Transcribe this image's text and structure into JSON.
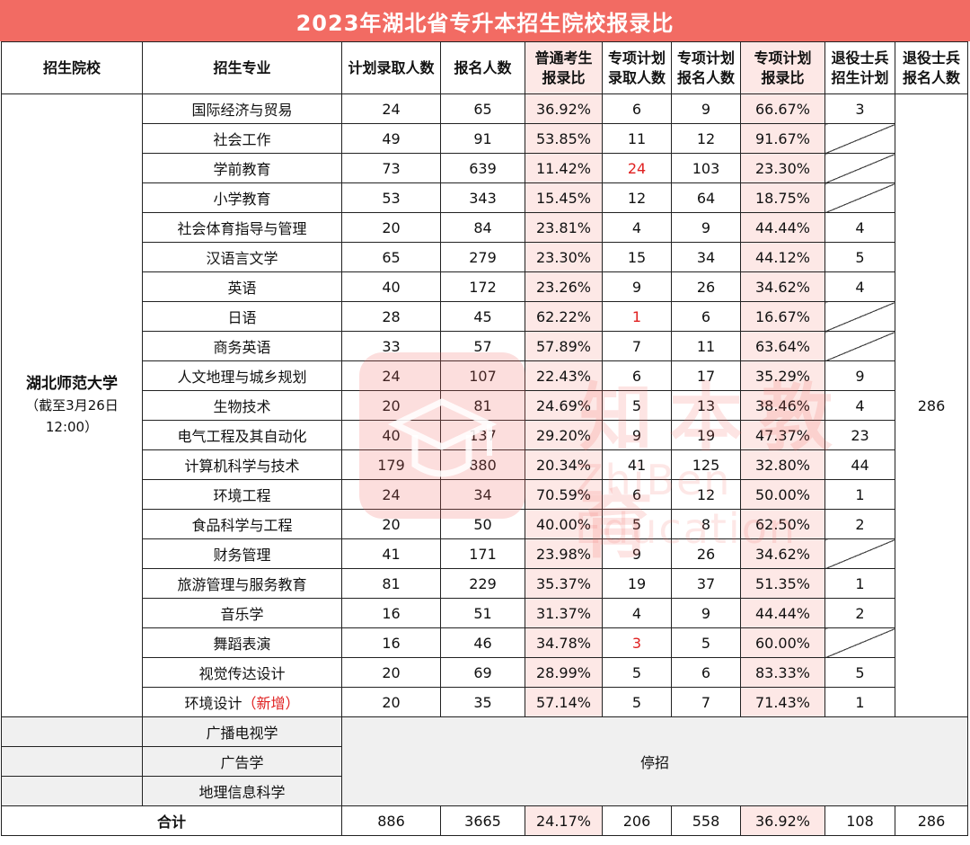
{
  "title": "2023年湖北省专升本招生院校报录比",
  "headers": {
    "school": "招生院校",
    "major": "招生专业",
    "plan": "计划录取人数",
    "applicants": "报名人数",
    "ratio_line1": "普通考生",
    "ratio_line2": "报录比",
    "special_admit_line1": "专项计划",
    "special_admit_line2": "录取人数",
    "special_apply_line1": "专项计划",
    "special_apply_line2": "报名人数",
    "special_ratio_line1": "专项计划",
    "special_ratio_line2": "报录比",
    "veteran_plan_line1": "退役士兵",
    "veteran_plan_line2": "招生计划",
    "veteran_apply_line1": "退役士兵",
    "veteran_apply_line2": "报名人数"
  },
  "school": {
    "name": "湖北师范大学",
    "note_line1": "（截至3月26日",
    "note_line2": "12:00）"
  },
  "veteran_applicants_total": "286",
  "rows": [
    {
      "major": "国际经济与贸易",
      "plan": "24",
      "applicants": "65",
      "ratio": "36.92%",
      "special_admit": "6",
      "special_apply": "9",
      "special_ratio": "66.67%",
      "veteran_plan": "3"
    },
    {
      "major": "社会工作",
      "plan": "49",
      "applicants": "91",
      "ratio": "53.85%",
      "special_admit": "11",
      "special_apply": "12",
      "special_ratio": "91.67%",
      "veteran_plan": ""
    },
    {
      "major": "学前教育",
      "plan": "73",
      "applicants": "639",
      "ratio": "11.42%",
      "special_admit": "24",
      "special_apply": "103",
      "special_ratio": "23.30%",
      "veteran_plan": ""
    },
    {
      "major": "小学教育",
      "plan": "53",
      "applicants": "343",
      "ratio": "15.45%",
      "special_admit": "12",
      "special_apply": "64",
      "special_ratio": "18.75%",
      "veteran_plan": ""
    },
    {
      "major": "社会体育指导与管理",
      "plan": "20",
      "applicants": "84",
      "ratio": "23.81%",
      "special_admit": "4",
      "special_apply": "9",
      "special_ratio": "44.44%",
      "veteran_plan": "4"
    },
    {
      "major": "汉语言文学",
      "plan": "65",
      "applicants": "279",
      "ratio": "23.30%",
      "special_admit": "15",
      "special_apply": "34",
      "special_ratio": "44.12%",
      "veteran_plan": "5"
    },
    {
      "major": "英语",
      "plan": "40",
      "applicants": "172",
      "ratio": "23.26%",
      "special_admit": "9",
      "special_apply": "26",
      "special_ratio": "34.62%",
      "veteran_plan": "4"
    },
    {
      "major": "日语",
      "plan": "28",
      "applicants": "45",
      "ratio": "62.22%",
      "special_admit": "1",
      "special_apply": "6",
      "special_ratio": "16.67%",
      "veteran_plan": ""
    },
    {
      "major": "商务英语",
      "plan": "33",
      "applicants": "57",
      "ratio": "57.89%",
      "special_admit": "7",
      "special_apply": "11",
      "special_ratio": "63.64%",
      "veteran_plan": ""
    },
    {
      "major": "人文地理与城乡规划",
      "plan": "24",
      "applicants": "107",
      "ratio": "22.43%",
      "special_admit": "6",
      "special_apply": "17",
      "special_ratio": "35.29%",
      "veteran_plan": "9"
    },
    {
      "major": "生物技术",
      "plan": "20",
      "applicants": "81",
      "ratio": "24.69%",
      "special_admit": "5",
      "special_apply": "13",
      "special_ratio": "38.46%",
      "veteran_plan": "4"
    },
    {
      "major": "电气工程及其自动化",
      "plan": "40",
      "applicants": "137",
      "ratio": "29.20%",
      "special_admit": "9",
      "special_apply": "19",
      "special_ratio": "47.37%",
      "veteran_plan": "23"
    },
    {
      "major": "计算机科学与技术",
      "plan": "179",
      "applicants": "880",
      "ratio": "20.34%",
      "special_admit": "41",
      "special_apply": "125",
      "special_ratio": "32.80%",
      "veteran_plan": "44"
    },
    {
      "major": "环境工程",
      "plan": "24",
      "applicants": "34",
      "ratio": "70.59%",
      "special_admit": "6",
      "special_apply": "12",
      "special_ratio": "50.00%",
      "veteran_plan": "1"
    },
    {
      "major": "食品科学与工程",
      "plan": "20",
      "applicants": "50",
      "ratio": "40.00%",
      "special_admit": "5",
      "special_apply": "8",
      "special_ratio": "62.50%",
      "veteran_plan": "2"
    },
    {
      "major": "财务管理",
      "plan": "41",
      "applicants": "171",
      "ratio": "23.98%",
      "special_admit": "9",
      "special_apply": "26",
      "special_ratio": "34.62%",
      "veteran_plan": ""
    },
    {
      "major": "旅游管理与服务教育",
      "plan": "81",
      "applicants": "229",
      "ratio": "35.37%",
      "special_admit": "19",
      "special_apply": "37",
      "special_ratio": "51.35%",
      "veteran_plan": "1"
    },
    {
      "major": "音乐学",
      "plan": "16",
      "applicants": "51",
      "ratio": "31.37%",
      "special_admit": "4",
      "special_apply": "9",
      "special_ratio": "44.44%",
      "veteran_plan": "2"
    },
    {
      "major": "舞蹈表演",
      "plan": "16",
      "applicants": "46",
      "ratio": "34.78%",
      "special_admit": "3",
      "special_apply": "5",
      "special_ratio": "60.00%",
      "veteran_plan": ""
    },
    {
      "major": "视觉传达设计",
      "plan": "20",
      "applicants": "69",
      "ratio": "28.99%",
      "special_admit": "5",
      "special_apply": "6",
      "special_ratio": "83.33%",
      "veteran_plan": "5"
    },
    {
      "major": "环境设计",
      "major_tag": "（新增）",
      "plan": "20",
      "applicants": "35",
      "ratio": "57.14%",
      "special_admit": "5",
      "special_apply": "7",
      "special_ratio": "71.43%",
      "veteran_plan": "1"
    }
  ],
  "stopped": {
    "majors": [
      "广播电视学",
      "广告学",
      "地理信息科学"
    ],
    "label": "停招"
  },
  "total": {
    "label": "合计",
    "plan": "886",
    "applicants": "3665",
    "ratio": "24.17%",
    "special_admit": "206",
    "special_apply": "558",
    "special_ratio": "36.92%",
    "veteran_plan": "108",
    "veteran_apply": "286"
  },
  "watermark": {
    "text": "知本教育",
    "sub": "ZhiBen Education"
  },
  "colors": {
    "title_bg": "#f26b63",
    "ratio_column_bg": "#fde8e6",
    "highlight_red": "#e02020",
    "stopped_bg": "#f0f0f0"
  }
}
